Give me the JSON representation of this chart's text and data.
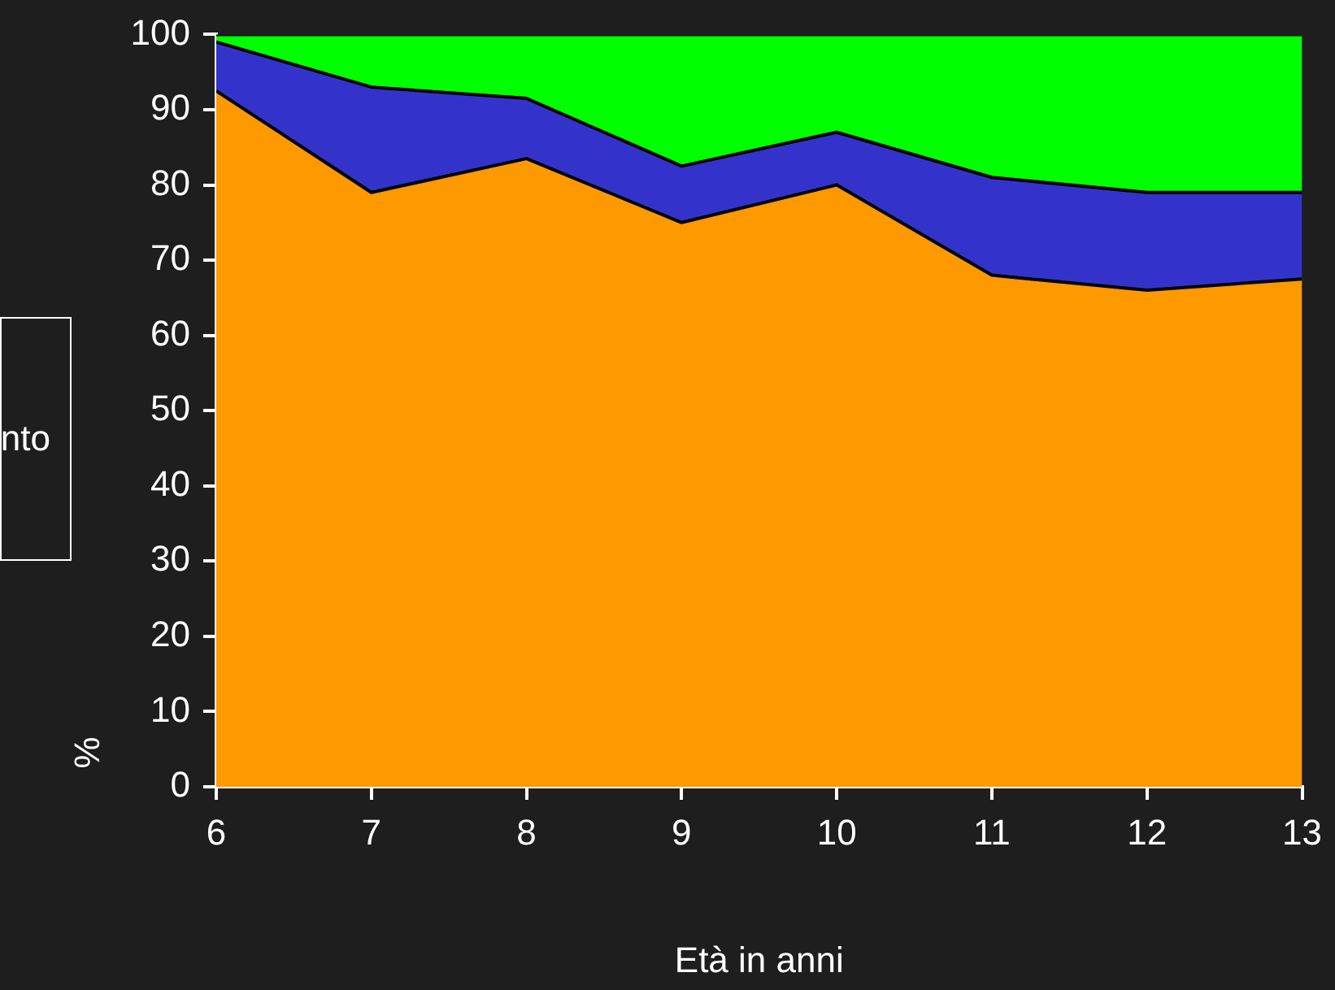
{
  "chart_data": {
    "type": "area",
    "stacked": true,
    "xlabel": "Età in anni",
    "ylabel": "%",
    "x": [
      6,
      7,
      8,
      9,
      10,
      11,
      12,
      13
    ],
    "xlim": [
      6,
      13
    ],
    "xticks": [
      6,
      7,
      8,
      9,
      10,
      11,
      12,
      13
    ],
    "ylim": [
      0,
      100
    ],
    "yticks": [
      0,
      10,
      20,
      30,
      40,
      50,
      60,
      70,
      80,
      90,
      100
    ],
    "grid": false,
    "annotations": [
      "nto"
    ],
    "series": [
      {
        "color": "#ff9900",
        "values": [
          92.5,
          79,
          83.5,
          75,
          80,
          68,
          66,
          67.5
        ]
      },
      {
        "color": "#3333cc",
        "values": [
          6.5,
          14,
          8,
          7.5,
          7,
          13,
          13,
          11.5
        ]
      },
      {
        "color": "#00ff00",
        "values": [
          1,
          7,
          8.5,
          17.5,
          13,
          19,
          21,
          21
        ]
      }
    ]
  }
}
